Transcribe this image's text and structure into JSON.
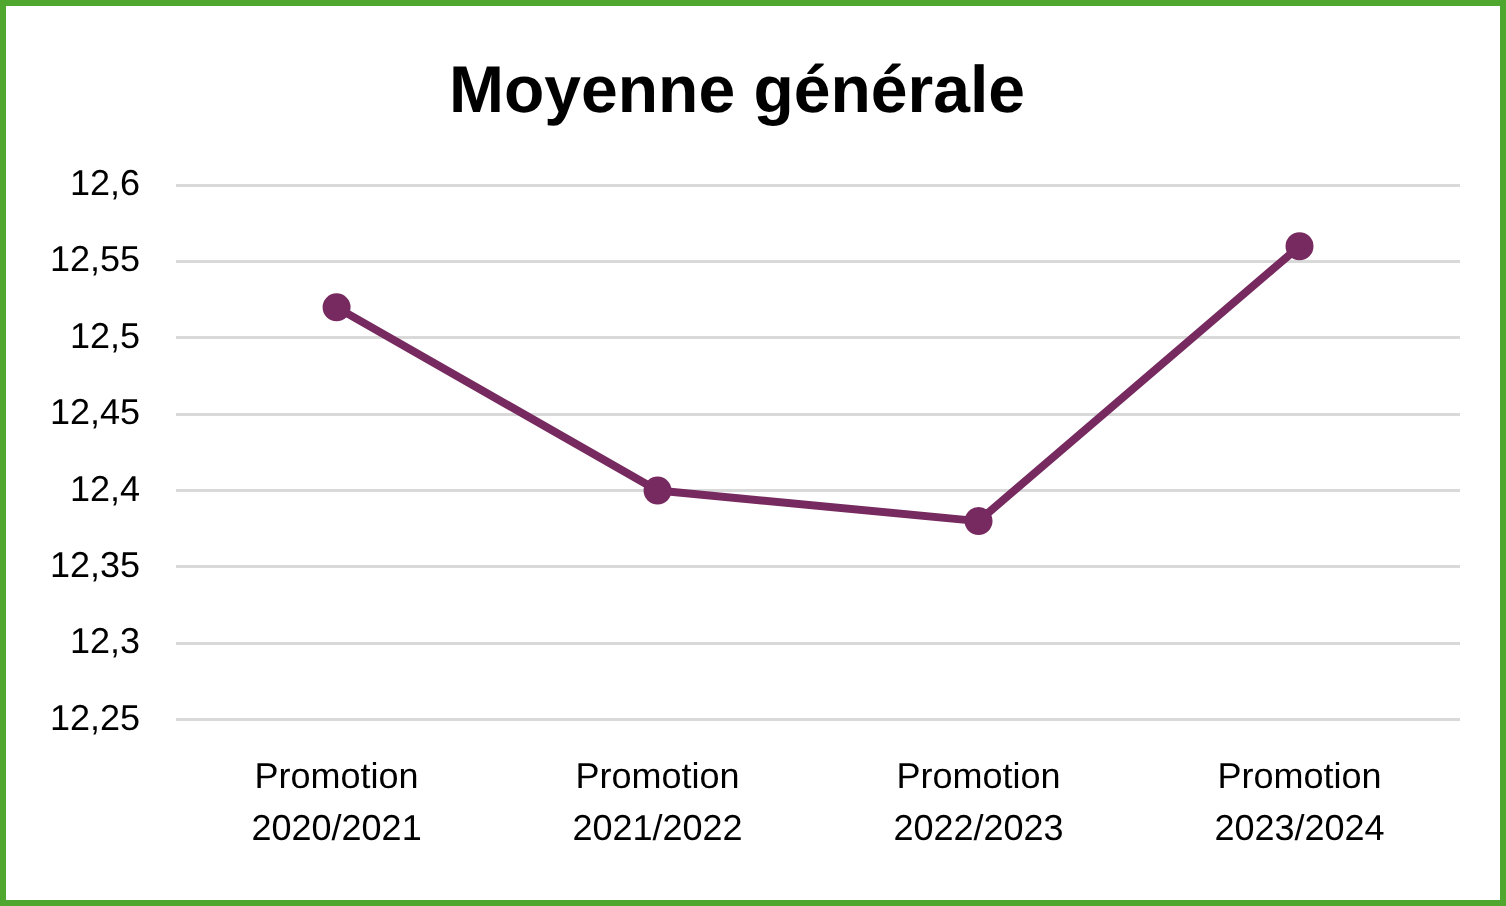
{
  "chart_data": {
    "type": "line",
    "title": "Moyenne générale",
    "categories": [
      "Promotion 2020/2021",
      "Promotion 2021/2022",
      "Promotion 2022/2023",
      "Promotion 2023/2024"
    ],
    "values": [
      12.52,
      12.4,
      12.38,
      12.56
    ],
    "color": "#772a5f",
    "ylim": [
      12.25,
      12.6
    ],
    "yticks": [
      {
        "value": 12.25,
        "label": "12,25"
      },
      {
        "value": 12.3,
        "label": "12,3"
      },
      {
        "value": 12.35,
        "label": "12,35"
      },
      {
        "value": 12.4,
        "label": "12,4"
      },
      {
        "value": 12.45,
        "label": "12,45"
      },
      {
        "value": 12.5,
        "label": "12,5"
      },
      {
        "value": 12.55,
        "label": "12,55"
      },
      {
        "value": 12.6,
        "label": "12,6"
      }
    ],
    "grid": "y",
    "marker": "circle",
    "line_style": "solid"
  }
}
